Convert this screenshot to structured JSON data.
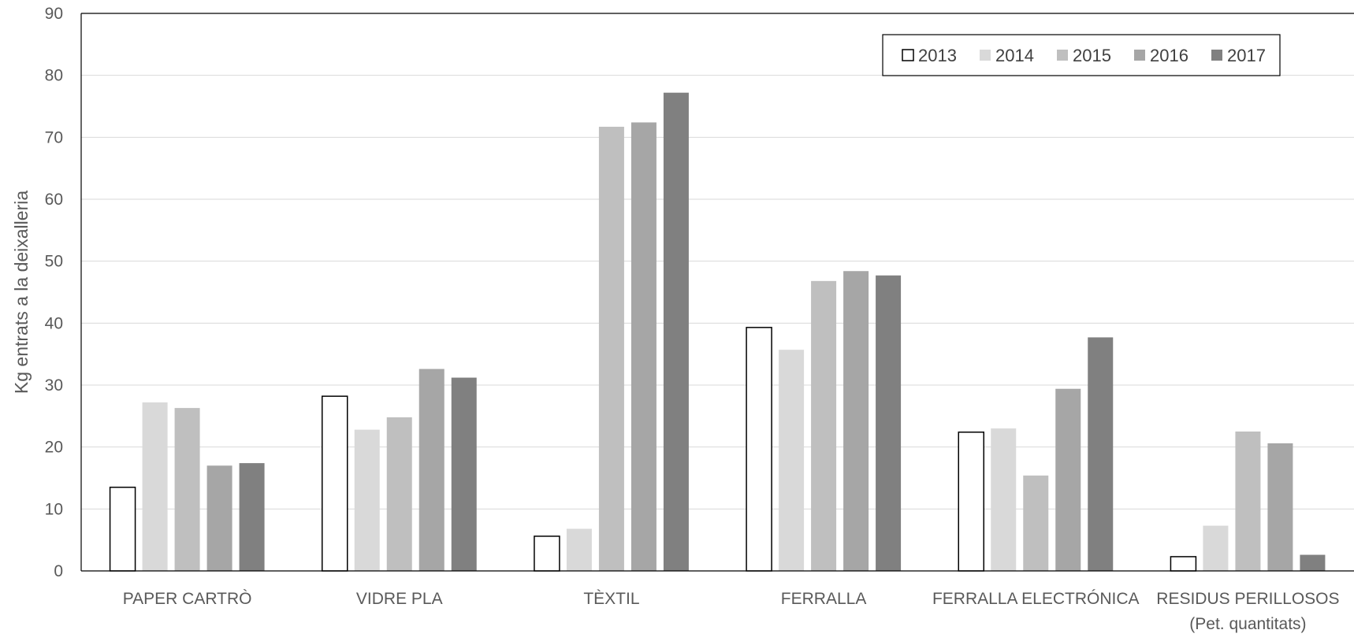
{
  "chart_data": {
    "type": "bar",
    "title": "",
    "xlabel": "",
    "ylabel": "Kg entrats a la deixalleria",
    "ylim": [
      0,
      90
    ],
    "yticks": [
      0,
      10,
      20,
      30,
      40,
      50,
      60,
      70,
      80,
      90
    ],
    "grid": true,
    "legend_position": "top-right",
    "categories": [
      [
        "PAPER CARTRÒ"
      ],
      [
        "VIDRE PLA"
      ],
      [
        "TÈXTIL"
      ],
      [
        "FERRALLA"
      ],
      [
        "FERRALLA ELECTRÓNICA"
      ],
      [
        "RESIDUS PERILLOSOS",
        "(Pet. quantitats)"
      ]
    ],
    "series": [
      {
        "name": "2013",
        "color": "#ffffff",
        "values": [
          13.5,
          28.2,
          5.6,
          39.3,
          22.4,
          2.3
        ]
      },
      {
        "name": "2014",
        "color": "#d9d9d9",
        "values": [
          27.2,
          22.8,
          6.8,
          35.7,
          23.0,
          7.3
        ]
      },
      {
        "name": "2015",
        "color": "#bfbfbf",
        "values": [
          26.3,
          24.8,
          71.7,
          46.8,
          15.4,
          22.5
        ]
      },
      {
        "name": "2016",
        "color": "#a6a6a6",
        "values": [
          17.0,
          32.6,
          72.4,
          48.4,
          29.4,
          20.6
        ]
      },
      {
        "name": "2017",
        "color": "#808080",
        "values": [
          17.4,
          31.2,
          77.2,
          47.7,
          37.7,
          2.6
        ]
      }
    ]
  }
}
